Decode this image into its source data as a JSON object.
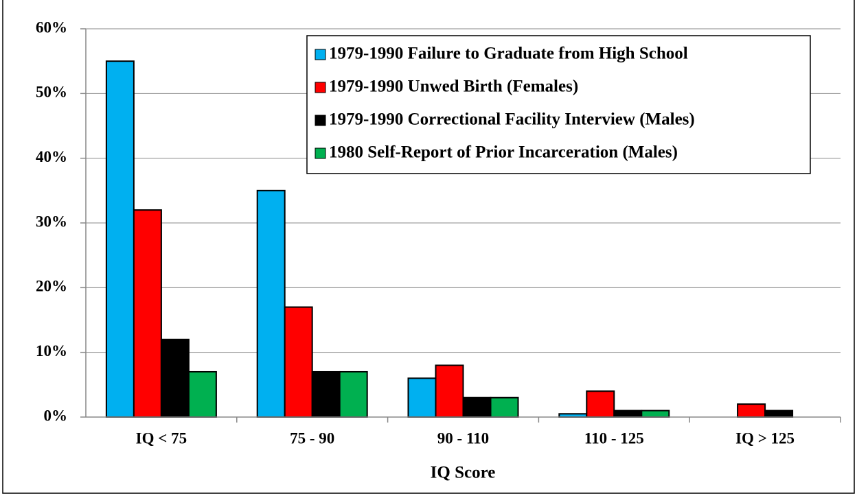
{
  "chart_data": {
    "type": "bar",
    "x_label": "IQ Score",
    "categories": [
      "IQ < 75",
      "75 - 90",
      "90 - 110",
      "110 - 125",
      "IQ > 125"
    ],
    "series": [
      {
        "name": "1979-1990 Failure to Graduate from High School",
        "color": "#00b0f0",
        "values": [
          55,
          35,
          6,
          0.5,
          0
        ]
      },
      {
        "name": "1979-1990 Unwed Birth (Females)",
        "color": "#ff0000",
        "values": [
          32,
          17,
          8,
          4,
          2
        ]
      },
      {
        "name": "1979-1990 Correctional Facility Interview (Males)",
        "color": "#000000",
        "values": [
          12,
          7,
          3,
          1,
          1
        ]
      },
      {
        "name": "1980 Self-Report of Prior Incarceration (Males)",
        "color": "#00b050",
        "values": [
          7,
          7,
          3,
          1,
          0
        ]
      }
    ],
    "ylim": [
      0,
      60
    ],
    "yticks": [
      {
        "value": 0,
        "label": "0%"
      },
      {
        "value": 10,
        "label": "10%"
      },
      {
        "value": 20,
        "label": "20%"
      },
      {
        "value": 30,
        "label": "30%"
      },
      {
        "value": 40,
        "label": "40%"
      },
      {
        "value": 50,
        "label": "50%"
      },
      {
        "value": 60,
        "label": "60%"
      }
    ],
    "grid": true,
    "legend": "top-right"
  }
}
